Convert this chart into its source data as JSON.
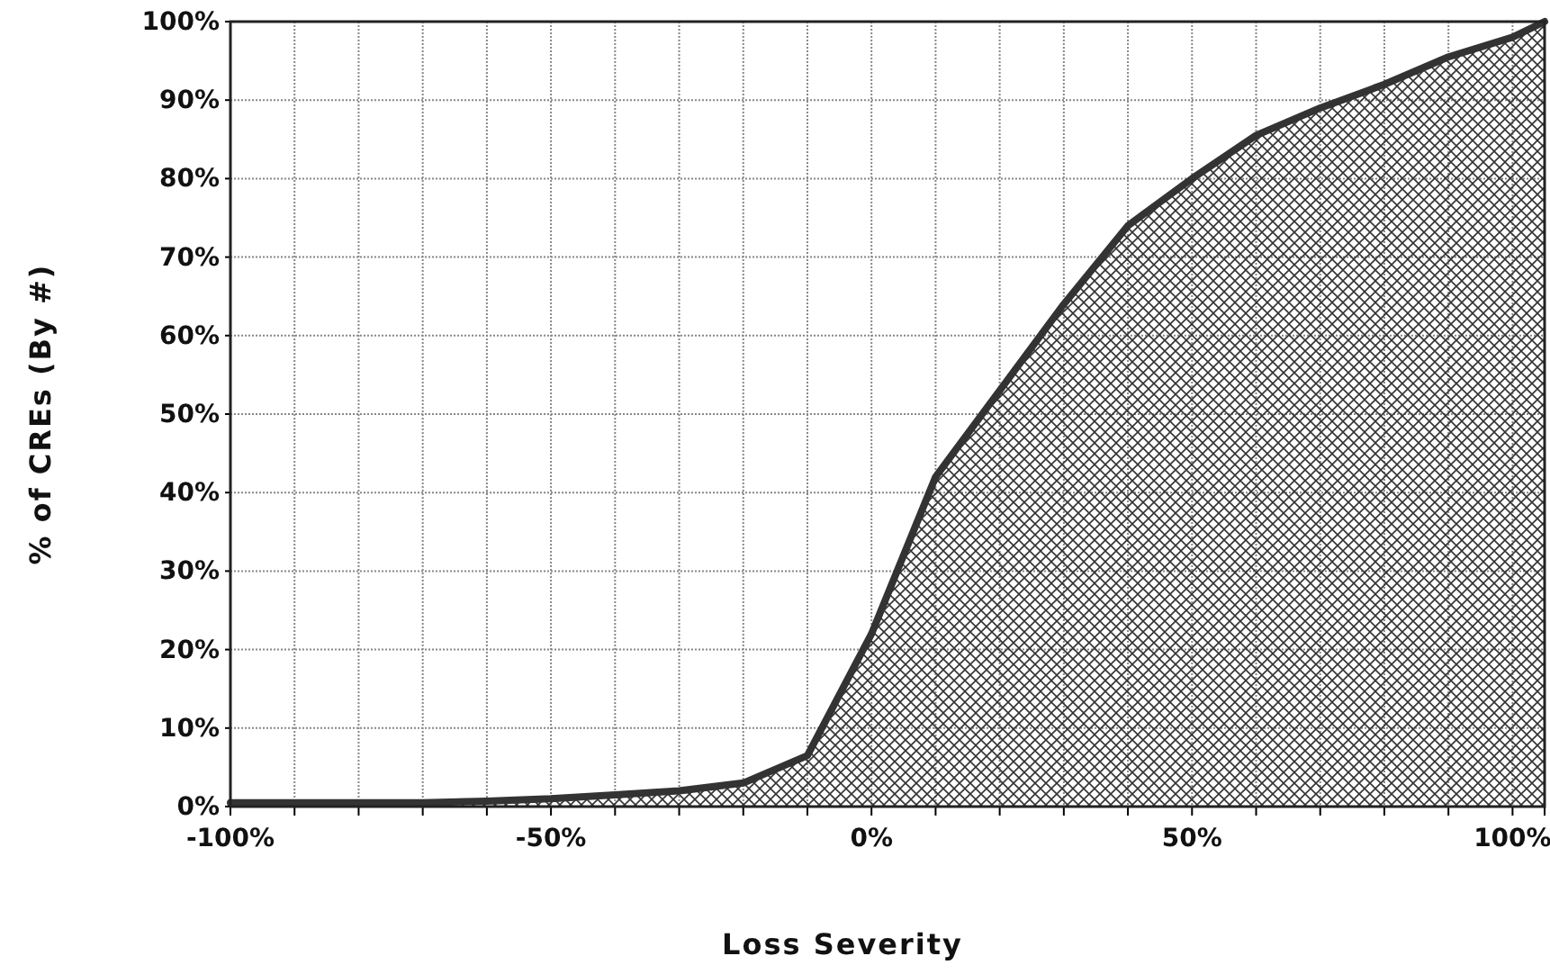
{
  "chart_data": {
    "type": "area",
    "xlabel": "Loss Severity",
    "ylabel": "% of CREs (By #)",
    "x": [
      -100,
      -90,
      -80,
      -70,
      -60,
      -50,
      -40,
      -30,
      -20,
      -10,
      0,
      10,
      20,
      30,
      40,
      50,
      60,
      70,
      80,
      90,
      100,
      105
    ],
    "series": [
      {
        "color": "#333333",
        "values": [
          0.5,
          0.5,
          0.5,
          0.5,
          0.7,
          1,
          1.5,
          2,
          3,
          6.5,
          22,
          42,
          53,
          64,
          74,
          80,
          85.5,
          89,
          92,
          95.5,
          98,
          100
        ]
      }
    ],
    "xlim": [
      -100,
      105
    ],
    "xticks": [
      {
        "value": -100,
        "label": "-100%"
      },
      {
        "value": -90,
        "label": null
      },
      {
        "value": -80,
        "label": null
      },
      {
        "value": -70,
        "label": null
      },
      {
        "value": -60,
        "label": null
      },
      {
        "value": -50,
        "label": "-50%"
      },
      {
        "value": -40,
        "label": null
      },
      {
        "value": -30,
        "label": null
      },
      {
        "value": -20,
        "label": null
      },
      {
        "value": -10,
        "label": null
      },
      {
        "value": 0,
        "label": "0%"
      },
      {
        "value": 10,
        "label": null
      },
      {
        "value": 20,
        "label": null
      },
      {
        "value": 30,
        "label": null
      },
      {
        "value": 40,
        "label": null
      },
      {
        "value": 50,
        "label": "50%"
      },
      {
        "value": 60,
        "label": null
      },
      {
        "value": 70,
        "label": null
      },
      {
        "value": 80,
        "label": null
      },
      {
        "value": 90,
        "label": null
      },
      {
        "value": 100,
        "label": "100%"
      }
    ],
    "ylim": [
      0,
      100
    ],
    "yticks": [
      {
        "value": 0,
        "label": "0%"
      },
      {
        "value": 10,
        "label": "10%"
      },
      {
        "value": 20,
        "label": "20%"
      },
      {
        "value": 30,
        "label": "30%"
      },
      {
        "value": 40,
        "label": "40%"
      },
      {
        "value": 50,
        "label": "50%"
      },
      {
        "value": 60,
        "label": "60%"
      },
      {
        "value": 70,
        "label": "70%"
      },
      {
        "value": 80,
        "label": "80%"
      },
      {
        "value": 90,
        "label": "90%"
      },
      {
        "value": 100,
        "label": "100%"
      }
    ],
    "grid": true
  }
}
